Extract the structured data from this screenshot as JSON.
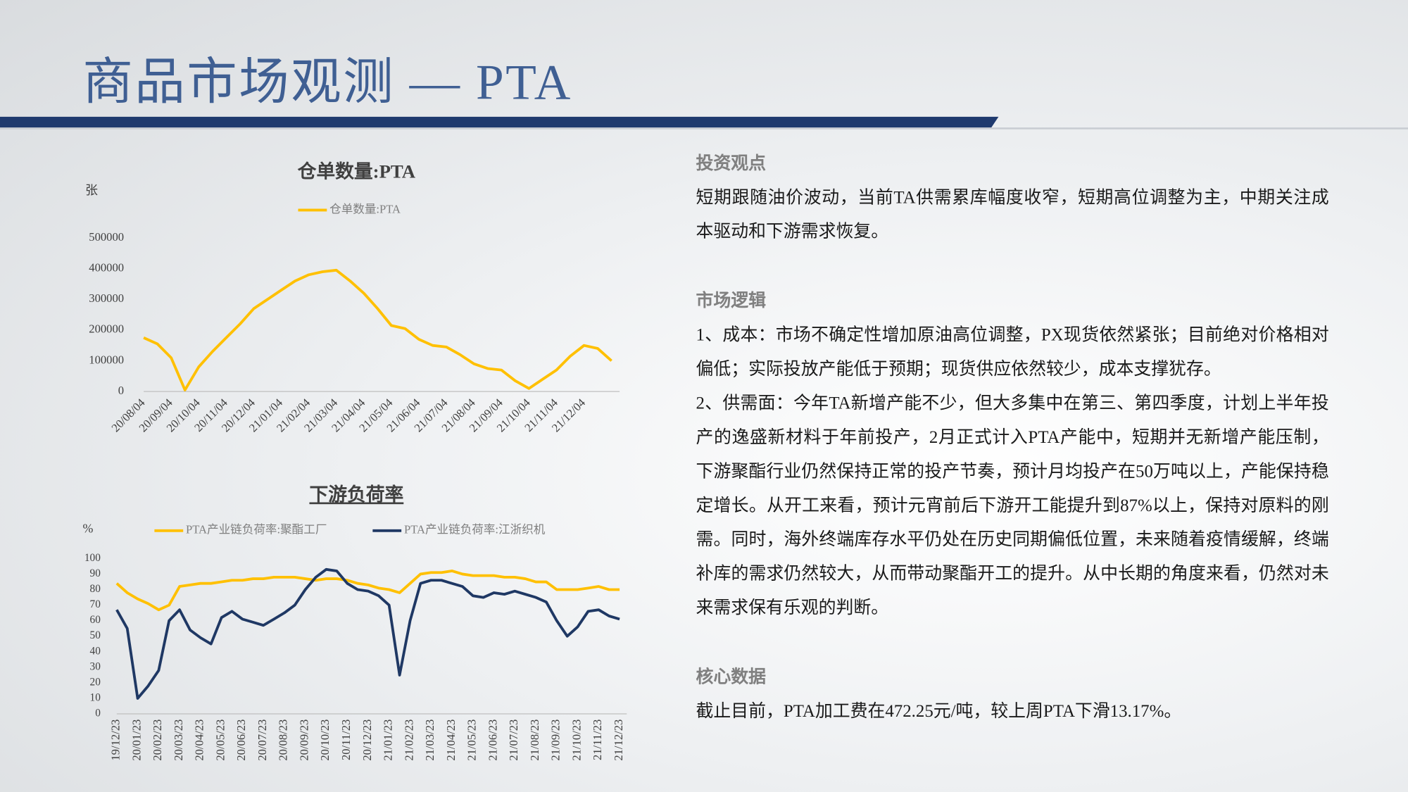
{
  "header": {
    "title": "商品市场观测 — PTA"
  },
  "chart_data": [
    {
      "type": "line",
      "title": "仓单数量:PTA",
      "y_unit": "张",
      "categories": [
        "20/08/04",
        null,
        "20/09/04",
        null,
        "20/10/04",
        null,
        "20/11/04",
        null,
        "20/12/04",
        null,
        "21/01/04",
        null,
        "21/02/04",
        null,
        "21/03/04",
        null,
        "21/04/04",
        null,
        "21/05/04",
        null,
        "21/06/04",
        null,
        "21/07/04",
        null,
        "21/08/04",
        null,
        "21/09/04",
        null,
        "21/10/04",
        null,
        "21/11/04",
        null,
        "21/12/04",
        null,
        null
      ],
      "series": [
        {
          "name": "仓单数量:PTA",
          "color": "#ffc000",
          "values": [
            175000,
            155000,
            110000,
            5000,
            80000,
            130000,
            175000,
            220000,
            270000,
            300000,
            330000,
            360000,
            380000,
            390000,
            395000,
            360000,
            320000,
            270000,
            215000,
            205000,
            170000,
            150000,
            145000,
            120000,
            90000,
            75000,
            70000,
            35000,
            10000,
            40000,
            70000,
            115000,
            150000,
            140000,
            100000
          ]
        }
      ],
      "ylim": [
        0,
        500000
      ],
      "yticks": [
        0,
        100000,
        200000,
        300000,
        400000,
        500000
      ],
      "grid": false
    },
    {
      "type": "line",
      "title": "下游负荷率",
      "y_unit": "%",
      "categories": [
        "19/12/23",
        null,
        "20/01/23",
        null,
        "20/02/23",
        null,
        "20/03/23",
        null,
        "20/04/23",
        null,
        "20/05/23",
        null,
        "20/06/23",
        null,
        "20/07/23",
        null,
        "20/08/23",
        null,
        "20/09/23",
        null,
        "20/10/23",
        null,
        "20/11/23",
        null,
        "20/12/23",
        null,
        "21/01/23",
        null,
        "21/02/23",
        null,
        "21/03/23",
        null,
        "21/04/23",
        null,
        "21/05/23",
        null,
        "21/06/23",
        null,
        "21/07/23",
        null,
        "21/08/23",
        null,
        "21/09/23",
        null,
        "21/10/23",
        null,
        "21/11/23",
        null,
        "21/12/23"
      ],
      "series": [
        {
          "name": "PTA产业链负荷率:聚酯工厂",
          "color": "#ffc000",
          "values": [
            84,
            78,
            74,
            71,
            67,
            70,
            82,
            83,
            84,
            84,
            85,
            86,
            86,
            87,
            87,
            88,
            88,
            88,
            87,
            86,
            87,
            87,
            86,
            84,
            83,
            81,
            80,
            78,
            84,
            90,
            91,
            91,
            92,
            90,
            89,
            89,
            89,
            88,
            88,
            87,
            85,
            85,
            80,
            80,
            80,
            81,
            82,
            80,
            80
          ]
        },
        {
          "name": "PTA产业链负荷率:江浙织机",
          "color": "#1f3864",
          "values": [
            67,
            55,
            10,
            18,
            28,
            60,
            67,
            54,
            49,
            45,
            62,
            66,
            61,
            59,
            57,
            61,
            65,
            70,
            80,
            88,
            93,
            92,
            84,
            80,
            79,
            76,
            70,
            25,
            60,
            84,
            86,
            86,
            84,
            82,
            76,
            75,
            78,
            77,
            79,
            77,
            75,
            72,
            60,
            50,
            56,
            66,
            67,
            63,
            61
          ]
        }
      ],
      "ylim": [
        0,
        100
      ],
      "yticks": [
        0,
        10,
        20,
        30,
        40,
        50,
        60,
        70,
        80,
        90,
        100
      ],
      "grid": false
    }
  ],
  "sections": [
    {
      "heading": "投资观点",
      "paragraphs": [
        "短期跟随油价波动，当前TA供需累库幅度收窄，短期高位调整为主，中期关注成本驱动和下游需求恢复。"
      ]
    },
    {
      "heading": "市场逻辑",
      "paragraphs": [
        "1、成本：市场不确定性增加原油高位调整，PX现货依然紧张；目前绝对价格相对偏低；实际投放产能低于预期；现货供应依然较少，成本支撑犹存。",
        "2、供需面：今年TA新增产能不少，但大多集中在第三、第四季度，计划上半年投产的逸盛新材料于年前投产，2月正式计入PTA产能中，短期并无新增产能压制，下游聚酯行业仍然保持正常的投产节奏，预计月均投产在50万吨以上，产能保持稳定增长。从开工来看，预计元宵前后下游开工能提升到87%以上，保持对原料的刚需。同时，海外终端库存水平仍处在历史同期偏低位置，未来随着疫情缓解，终端补库的需求仍然较大，从而带动聚酯开工的提升。从中长期的角度来看，仍然对未来需求保有乐观的判断。"
      ]
    },
    {
      "heading": "核心数据",
      "paragraphs": [
        "截止目前，PTA加工费在472.25元/吨，较上周PTA下滑13.17%。"
      ]
    }
  ]
}
